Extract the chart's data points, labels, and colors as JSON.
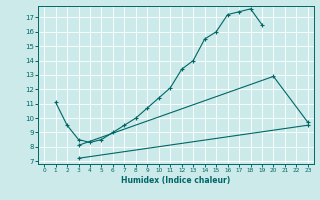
{
  "xlabel": "Humidex (Indice chaleur)",
  "bg_color": "#cceaea",
  "line_color": "#006666",
  "grid_color": "#b0d8d8",
  "xlim": [
    -0.5,
    23.5
  ],
  "ylim": [
    6.8,
    17.8
  ],
  "yticks": [
    7,
    8,
    9,
    10,
    11,
    12,
    13,
    14,
    15,
    16,
    17
  ],
  "xticks": [
    0,
    1,
    2,
    3,
    4,
    5,
    6,
    7,
    8,
    9,
    10,
    11,
    12,
    13,
    14,
    15,
    16,
    17,
    18,
    19,
    20,
    21,
    22,
    23
  ],
  "series1_x": [
    3,
    23
  ],
  "series1_y": [
    7.2,
    9.5
  ],
  "series2_x": [
    3,
    20,
    23
  ],
  "series2_y": [
    8.1,
    12.9,
    9.7
  ],
  "series3_x": [
    1,
    2,
    3,
    4,
    5,
    6,
    7,
    8,
    9,
    10,
    11,
    12,
    13,
    14,
    15,
    16,
    17,
    18,
    19
  ],
  "series3_y": [
    11.1,
    9.5,
    8.5,
    8.3,
    8.5,
    9.0,
    9.5,
    10.0,
    10.7,
    11.4,
    12.1,
    13.4,
    14.0,
    15.5,
    16.0,
    17.2,
    17.4,
    17.6,
    16.5
  ]
}
